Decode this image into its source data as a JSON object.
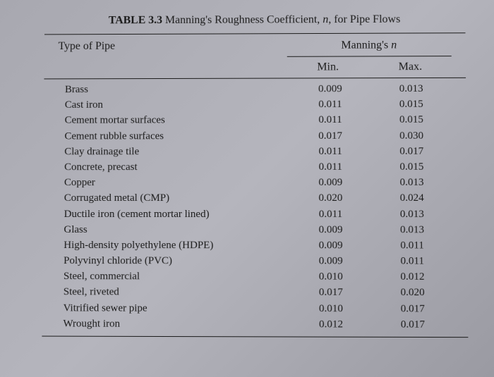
{
  "caption": {
    "label": "TABLE 3.3",
    "title_pre": "Manning's Roughness Coefficient, ",
    "title_var": "n",
    "title_post": ", for Pipe Flows"
  },
  "headers": {
    "type": "Type of Pipe",
    "group_pre": "Manning's ",
    "group_var": "n",
    "min": "Min.",
    "max": "Max."
  },
  "rows": [
    {
      "type": "Brass",
      "min": "0.009",
      "max": "0.013"
    },
    {
      "type": "Cast iron",
      "min": "0.011",
      "max": "0.015"
    },
    {
      "type": "Cement mortar surfaces",
      "min": "0.011",
      "max": "0.015"
    },
    {
      "type": "Cement rubble surfaces",
      "min": "0.017",
      "max": "0.030"
    },
    {
      "type": "Clay drainage tile",
      "min": "0.011",
      "max": "0.017"
    },
    {
      "type": "Concrete, precast",
      "min": "0.011",
      "max": "0.015"
    },
    {
      "type": "Copper",
      "min": "0.009",
      "max": "0.013"
    },
    {
      "type": "Corrugated metal (CMP)",
      "min": "0.020",
      "max": "0.024"
    },
    {
      "type": "Ductile iron (cement mortar lined)",
      "min": "0.011",
      "max": "0.013"
    },
    {
      "type": "Glass",
      "min": "0.009",
      "max": "0.013"
    },
    {
      "type": "High-density polyethylene (HDPE)",
      "min": "0.009",
      "max": "0.011"
    },
    {
      "type": "Polyvinyl chloride (PVC)",
      "min": "0.009",
      "max": "0.011"
    },
    {
      "type": "Steel, commercial",
      "min": "0.010",
      "max": "0.012"
    },
    {
      "type": "Steel, riveted",
      "min": "0.017",
      "max": "0.020"
    },
    {
      "type": "Vitrified sewer pipe",
      "min": "0.010",
      "max": "0.017"
    },
    {
      "type": "Wrought iron",
      "min": "0.012",
      "max": "0.017"
    }
  ],
  "style": {
    "background": "#adadb4",
    "text_color": "#1a1a1a",
    "font_family": "Georgia, Times New Roman, serif",
    "caption_fontsize": 16,
    "header_fontsize": 16,
    "row_fontsize": 15,
    "rule_color": "#1a1a1a",
    "col_ratio_type": 1.4,
    "col_ratio_value": 0.5
  }
}
